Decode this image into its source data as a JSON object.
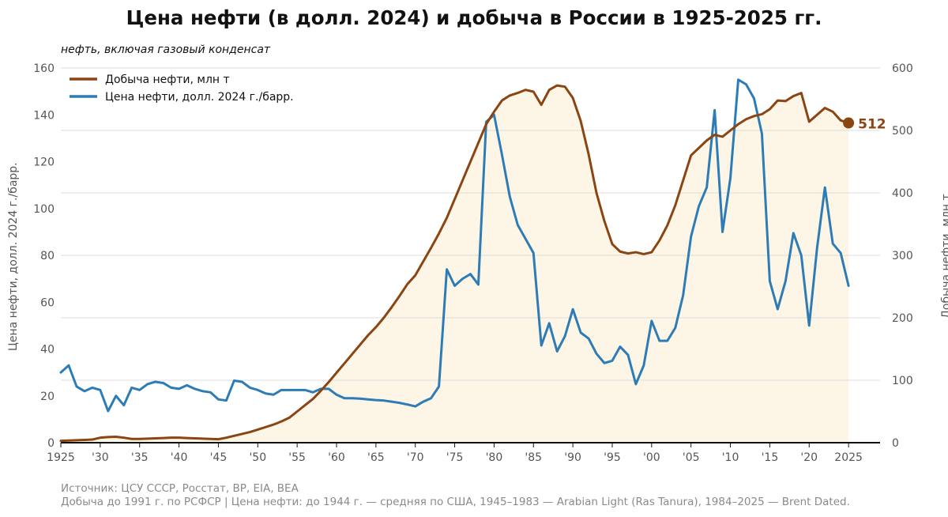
{
  "title": "Цена нефти (в долл. 2024) и добыча в России в 1925-2025 гг.",
  "subtitle": "нефть, включая газовый конденсат",
  "source_line1": "Источник: ЦСУ СССР, Росстат, BP, EIA, BEA",
  "source_line2": "Добыча до 1991 г. по РСФСР | Цена нефти: до 1944 г. — средняя по США, 1945–1983 — Arabian Light (Ras Tanura), 1984–2025 — Brent Dated.",
  "colors": {
    "production": "#8B4513",
    "price": "#2E7CB6",
    "area": "#FDF6E6",
    "grid": "#dcdcdc"
  },
  "chart_data": {
    "type": "line",
    "xlim": [
      1925,
      2029
    ],
    "x_ticks": [
      1925,
      1930,
      1935,
      1940,
      1945,
      1950,
      1955,
      1960,
      1965,
      1970,
      1975,
      1980,
      1985,
      1990,
      1995,
      2000,
      2005,
      2010,
      2015,
      2020,
      2025
    ],
    "x_tick_labels": [
      "1925",
      "'30",
      "'35",
      "'40",
      "'45",
      "'50",
      "'55",
      "'60",
      "'65",
      "'70",
      "'75",
      "'80",
      "'85",
      "'90",
      "'95",
      "'00",
      "'05",
      "'10",
      "'15",
      "'20",
      "2025"
    ],
    "ylabel_left": "Цена нефти, долл. 2024 г./барр.",
    "ylabel_right": "Добыча нефти, млн т",
    "ylim_left": [
      0,
      160
    ],
    "ylim_right": [
      0,
      600
    ],
    "y_ticks_left": [
      0,
      20,
      40,
      60,
      80,
      100,
      120,
      140,
      160
    ],
    "y_ticks_right": [
      0,
      100,
      200,
      300,
      400,
      500,
      600
    ],
    "grid": true,
    "legend_position": "top-left",
    "end_label": "512",
    "series": [
      {
        "name": "Добыча нефти, млн т",
        "axis": "right",
        "x": [
          1925,
          1926,
          1927,
          1928,
          1929,
          1930,
          1931,
          1932,
          1933,
          1934,
          1935,
          1936,
          1937,
          1938,
          1939,
          1940,
          1941,
          1942,
          1943,
          1944,
          1945,
          1946,
          1947,
          1948,
          1949,
          1950,
          1951,
          1952,
          1953,
          1954,
          1955,
          1956,
          1957,
          1958,
          1959,
          1960,
          1961,
          1962,
          1963,
          1964,
          1965,
          1966,
          1967,
          1968,
          1969,
          1970,
          1971,
          1972,
          1973,
          1974,
          1975,
          1976,
          1977,
          1978,
          1979,
          1980,
          1981,
          1982,
          1983,
          1984,
          1985,
          1986,
          1987,
          1988,
          1989,
          1990,
          1991,
          1992,
          1993,
          1994,
          1995,
          1996,
          1997,
          1998,
          1999,
          2000,
          2001,
          2002,
          2003,
          2004,
          2005,
          2006,
          2007,
          2008,
          2009,
          2010,
          2011,
          2012,
          2013,
          2014,
          2015,
          2016,
          2017,
          2018,
          2019,
          2020,
          2021,
          2022,
          2023,
          2024,
          2025
        ],
        "values": [
          3,
          3.5,
          4,
          4.5,
          5,
          8,
          9,
          9.5,
          8,
          6,
          6,
          6.5,
          7,
          7.5,
          8,
          8,
          7.5,
          7,
          6.5,
          6,
          5.5,
          8,
          11,
          14,
          17,
          21,
          25,
          29,
          34,
          40,
          50,
          60,
          70,
          83,
          97,
          112,
          127,
          142,
          157,
          172,
          185,
          200,
          217,
          235,
          254,
          268,
          290,
          312,
          335,
          360,
          390,
          420,
          450,
          480,
          510,
          530,
          548,
          556,
          560,
          565,
          562,
          541,
          565,
          572,
          570,
          552,
          515,
          462,
          400,
          355,
          318,
          306,
          303,
          305,
          302,
          305,
          324,
          348,
          380,
          420,
          460,
          472,
          484,
          493,
          490,
          500,
          510,
          518,
          523,
          526,
          534,
          548,
          547,
          555,
          560,
          514,
          525,
          536,
          530,
          516,
          512
        ]
      },
      {
        "name": "Цена нефти, долл. 2024 г./барр.",
        "axis": "left",
        "x": [
          1925,
          1926,
          1927,
          1928,
          1929,
          1930,
          1931,
          1932,
          1933,
          1934,
          1935,
          1936,
          1937,
          1938,
          1939,
          1940,
          1941,
          1942,
          1943,
          1944,
          1945,
          1946,
          1947,
          1948,
          1949,
          1950,
          1951,
          1952,
          1953,
          1954,
          1955,
          1956,
          1957,
          1958,
          1959,
          1960,
          1961,
          1962,
          1963,
          1964,
          1965,
          1966,
          1967,
          1968,
          1969,
          1970,
          1971,
          1972,
          1973,
          1974,
          1975,
          1976,
          1977,
          1978,
          1979,
          1980,
          1981,
          1982,
          1983,
          1984,
          1985,
          1986,
          1987,
          1988,
          1989,
          1990,
          1991,
          1992,
          1993,
          1994,
          1995,
          1996,
          1997,
          1998,
          1999,
          2000,
          2001,
          2002,
          2003,
          2004,
          2005,
          2006,
          2007,
          2008,
          2009,
          2010,
          2011,
          2012,
          2013,
          2014,
          2015,
          2016,
          2017,
          2018,
          2019,
          2020,
          2021,
          2022,
          2023,
          2024,
          2025
        ],
        "values": [
          30,
          33,
          24,
          22,
          23.5,
          22.5,
          13.5,
          20,
          16,
          23.5,
          22.5,
          25,
          26,
          25.5,
          23.5,
          23,
          24.5,
          23,
          22,
          21.5,
          18.5,
          18,
          26.5,
          26,
          23.5,
          22.5,
          21,
          20.5,
          22.5,
          22.5,
          22.5,
          22.5,
          21.5,
          23,
          23,
          20.5,
          19,
          19,
          18.8,
          18.5,
          18.2,
          18,
          17.5,
          17,
          16.3,
          15.5,
          17.5,
          19,
          24,
          74,
          67,
          70,
          72,
          67.5,
          137,
          140,
          123,
          105,
          93,
          87,
          81,
          41.5,
          51,
          39,
          45.5,
          57,
          47,
          44.5,
          38,
          34,
          35,
          41,
          37.5,
          25,
          33,
          52,
          43.5,
          43.5,
          49,
          63,
          88,
          101,
          109,
          142,
          90,
          113,
          155,
          153,
          147,
          132,
          69,
          57,
          69,
          89.5,
          80,
          50,
          83,
          109,
          85,
          81,
          67
        ]
      }
    ]
  }
}
